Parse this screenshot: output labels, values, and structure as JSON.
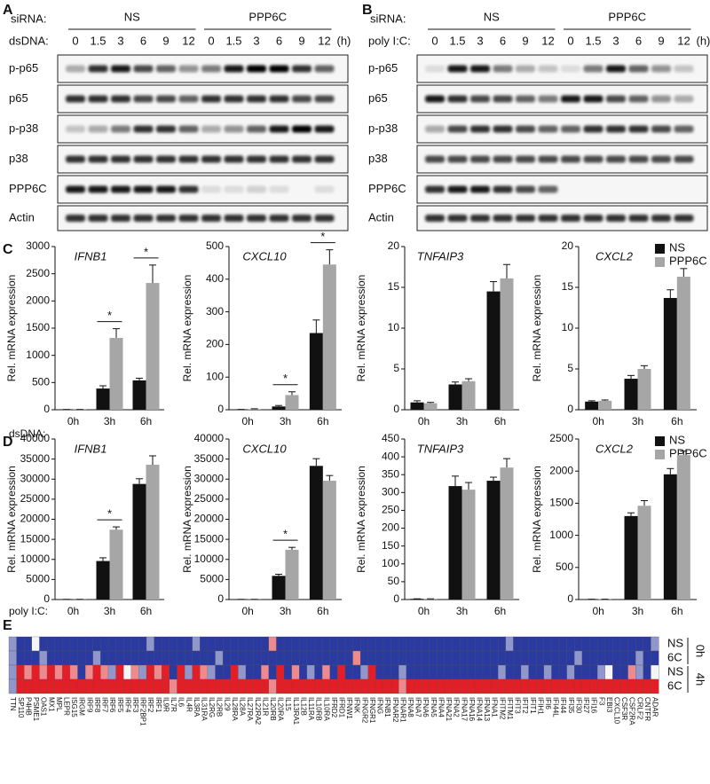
{
  "blots": [
    {
      "letter": "A",
      "sirna_label": "siRNA:",
      "groups": [
        "NS",
        "PPP6C"
      ],
      "treatment": "dsDNA:",
      "times": [
        "0",
        "1.5",
        "3",
        "6",
        "9",
        "12"
      ],
      "unit": "(h)",
      "rows": [
        {
          "label": "p-p65",
          "bands": [
            0.3,
            0.8,
            0.9,
            0.7,
            0.6,
            0.4,
            0.5,
            0.9,
            1,
            1,
            0.8,
            0.6
          ]
        },
        {
          "label": "p65",
          "bands": [
            0.8,
            0.8,
            0.8,
            0.7,
            0.7,
            0.6,
            0.8,
            0.8,
            0.8,
            0.8,
            0.7,
            0.7
          ]
        },
        {
          "label": "p-p38",
          "bands": [
            0.2,
            0.3,
            0.5,
            0.8,
            0.8,
            0.6,
            0.3,
            0.4,
            0.6,
            0.9,
            1,
            0.9
          ]
        },
        {
          "label": "p38",
          "bands": [
            0.8,
            0.8,
            0.8,
            0.8,
            0.8,
            0.8,
            0.8,
            0.8,
            0.8,
            0.8,
            0.8,
            0.8
          ]
        },
        {
          "label": "PPP6C",
          "bands": [
            0.9,
            0.9,
            0.9,
            0.9,
            0.9,
            0.8,
            0.1,
            0.1,
            0.15,
            0.1,
            0,
            0.1
          ]
        },
        {
          "label": "Actin",
          "bands": [
            0.8,
            0.8,
            0.8,
            0.8,
            0.8,
            0.8,
            0.8,
            0.8,
            0.8,
            0.8,
            0.8,
            0.8
          ]
        }
      ]
    },
    {
      "letter": "B",
      "sirna_label": "siRNA:",
      "groups": [
        "NS",
        "PPP6C"
      ],
      "treatment": "poly I:C:",
      "times": [
        "0",
        "1.5",
        "3",
        "6",
        "9",
        "12"
      ],
      "unit": "(h)",
      "rows": [
        {
          "label": "p-p65",
          "bands": [
            0.1,
            0.9,
            0.9,
            0.5,
            0.3,
            0.2,
            0.1,
            0.5,
            0.9,
            0.6,
            0.4,
            0.2
          ]
        },
        {
          "label": "p65",
          "bands": [
            0.9,
            0.8,
            0.7,
            0.7,
            0.6,
            0.5,
            0.9,
            0.9,
            0.7,
            0.6,
            0.4,
            0.3
          ]
        },
        {
          "label": "p-p38",
          "bands": [
            0.3,
            0.7,
            0.8,
            0.8,
            0.7,
            0.6,
            0.6,
            0.8,
            0.8,
            0.8,
            0.7,
            0.6
          ]
        },
        {
          "label": "p38",
          "bands": [
            0.7,
            0.7,
            0.7,
            0.7,
            0.7,
            0.7,
            0.7,
            0.7,
            0.7,
            0.7,
            0.7,
            0.7
          ]
        },
        {
          "label": "PPP6C",
          "bands": [
            0.8,
            0.9,
            0.9,
            0.8,
            0.7,
            0.6,
            0,
            0,
            0,
            0,
            0,
            0
          ]
        },
        {
          "label": "Actin",
          "bands": [
            0.8,
            0.8,
            0.8,
            0.8,
            0.8,
            0.8,
            0.8,
            0.8,
            0.8,
            0.8,
            0.8,
            0.8
          ]
        }
      ]
    }
  ],
  "bar_rows": [
    {
      "letter": "C",
      "treatment": "dsDNA:",
      "ylabel": "Rel. mRNA expression",
      "charts": [
        {
          "type": "bar",
          "gene": "IFNB1",
          "categories": [
            "0h",
            "3h",
            "6h"
          ],
          "ylim": [
            0,
            3000
          ],
          "yticks": [
            0,
            500,
            1000,
            1500,
            2000,
            2500,
            3000
          ],
          "stars": [
            null,
            "*",
            "*"
          ],
          "series": [
            {
              "name": "NS",
              "color": "#111111",
              "values": [
                5,
                390,
                540
              ],
              "errors": [
                0,
                50,
                40
              ]
            },
            {
              "name": "PPP6C",
              "color": "#a6a6a6",
              "values": [
                5,
                1320,
                2330
              ],
              "errors": [
                0,
                170,
                330
              ]
            }
          ]
        },
        {
          "type": "bar",
          "gene": "CXCL10",
          "categories": [
            "0h",
            "3h",
            "6h"
          ],
          "ylim": [
            0,
            500
          ],
          "yticks": [
            0,
            100,
            200,
            300,
            400,
            500
          ],
          "stars": [
            null,
            "*",
            "*"
          ],
          "series": [
            {
              "name": "NS",
              "color": "#111111",
              "values": [
                1,
                10,
                235
              ],
              "errors": [
                0,
                3,
                40
              ]
            },
            {
              "name": "PPP6C",
              "color": "#a6a6a6",
              "values": [
                2,
                45,
                445
              ],
              "errors": [
                1,
                10,
                45
              ]
            }
          ]
        },
        {
          "type": "bar",
          "gene": "TNFAIP3",
          "categories": [
            "0h",
            "3h",
            "6h"
          ],
          "ylim": [
            0,
            20
          ],
          "yticks": [
            0,
            5,
            10,
            15,
            20
          ],
          "stars": [
            null,
            null,
            null
          ],
          "series": [
            {
              "name": "NS",
              "color": "#111111",
              "values": [
                0.9,
                3.1,
                14.5
              ],
              "errors": [
                0.2,
                0.3,
                1.2
              ]
            },
            {
              "name": "PPP6C",
              "color": "#a6a6a6",
              "values": [
                0.8,
                3.5,
                16.1
              ],
              "errors": [
                0.1,
                0.3,
                1.7
              ]
            }
          ]
        },
        {
          "type": "bar",
          "gene": "CXCL2",
          "categories": [
            "0h",
            "3h",
            "6h"
          ],
          "ylim": [
            0,
            20
          ],
          "yticks": [
            0,
            5,
            10,
            15,
            20
          ],
          "stars": [
            null,
            null,
            null
          ],
          "series": [
            {
              "name": "NS",
              "color": "#111111",
              "values": [
                1,
                3.8,
                13.7
              ],
              "errors": [
                0.1,
                0.4,
                1
              ]
            },
            {
              "name": "PPP6C",
              "color": "#a6a6a6",
              "values": [
                1.1,
                5,
                16.3
              ],
              "errors": [
                0.1,
                0.4,
                1
              ]
            }
          ]
        }
      ]
    },
    {
      "letter": "D",
      "treatment": "poly I:C:",
      "ylabel": "Rel. mRNA expression",
      "charts": [
        {
          "type": "bar",
          "gene": "IFNB1",
          "categories": [
            "0h",
            "3h",
            "6h"
          ],
          "ylim": [
            0,
            40000
          ],
          "yticks": [
            0,
            5000,
            10000,
            15000,
            20000,
            25000,
            30000,
            35000,
            40000
          ],
          "stars": [
            null,
            "*",
            null
          ],
          "series": [
            {
              "name": "NS",
              "color": "#111111",
              "values": [
                50,
                9600,
                28800
              ],
              "errors": [
                0,
                800,
                1300
              ]
            },
            {
              "name": "PPP6C",
              "color": "#a6a6a6",
              "values": [
                50,
                17400,
                33600
              ],
              "errors": [
                0,
                700,
                2200
              ]
            }
          ]
        },
        {
          "type": "bar",
          "gene": "CXCL10",
          "categories": [
            "0h",
            "3h",
            "6h"
          ],
          "ylim": [
            0,
            40000
          ],
          "yticks": [
            0,
            5000,
            10000,
            15000,
            20000,
            25000,
            30000,
            35000,
            40000
          ],
          "stars": [
            null,
            "*",
            null
          ],
          "series": [
            {
              "name": "NS",
              "color": "#111111",
              "values": [
                50,
                5900,
                33300
              ],
              "errors": [
                0,
                400,
                1800
              ]
            },
            {
              "name": "PPP6C",
              "color": "#a6a6a6",
              "values": [
                50,
                12400,
                29600
              ],
              "errors": [
                0,
                600,
                1300
              ]
            }
          ]
        },
        {
          "type": "bar",
          "gene": "TNFAIP3",
          "categories": [
            "0h",
            "3h",
            "6h"
          ],
          "ylim": [
            0,
            450
          ],
          "yticks": [
            0,
            50,
            100,
            150,
            200,
            250,
            300,
            350,
            400,
            450
          ],
          "stars": [
            null,
            null,
            null
          ],
          "series": [
            {
              "name": "NS",
              "color": "#111111",
              "values": [
                2,
                318,
                333
              ],
              "errors": [
                0,
                28,
                10
              ]
            },
            {
              "name": "PPP6C",
              "color": "#a6a6a6",
              "values": [
                2,
                308,
                370
              ],
              "errors": [
                0,
                20,
                25
              ]
            }
          ]
        },
        {
          "type": "bar",
          "gene": "CXCL2",
          "categories": [
            "0h",
            "3h",
            "6h"
          ],
          "ylim": [
            0,
            2500
          ],
          "yticks": [
            0,
            500,
            1000,
            1500,
            2000,
            2500
          ],
          "stars": [
            null,
            null,
            null
          ],
          "series": [
            {
              "name": "NS",
              "color": "#111111",
              "values": [
                5,
                1300,
                1950
              ],
              "errors": [
                0,
                50,
                90
              ]
            },
            {
              "name": "PPP6C",
              "color": "#a6a6a6",
              "values": [
                5,
                1460,
                2250
              ],
              "errors": [
                0,
                80,
                60
              ]
            }
          ]
        }
      ]
    }
  ],
  "heatmap": {
    "letter": "E",
    "genes": [
      "TTN",
      "SP110",
      "P4HB",
      "PSME1",
      "OAS1",
      "MX1",
      "MPL",
      "LEPR",
      "ISG15",
      "IRGM",
      "IRF9",
      "IRF8",
      "IRF7",
      "IRF6",
      "IRF5",
      "IRF4",
      "IRF3",
      "IRF2BP1",
      "IRF2",
      "IRF1",
      "IL9R",
      "IL7R",
      "IL6",
      "IL4R",
      "IL3RA",
      "IL31RA",
      "IL2RG",
      "IL2RB",
      "IL29",
      "IL28RA",
      "IL28A",
      "IL27RA",
      "IL22RA2",
      "IL21R",
      "IL20RB",
      "IL20RA",
      "IL15",
      "IL13RA1",
      "IL12B",
      "IL11RA",
      "IL10RB",
      "IL10RA",
      "IFRD2",
      "IFRD1",
      "IFNW1",
      "IFNK",
      "IFNGR2",
      "IFNGR1",
      "IFNG",
      "IFNB1",
      "IFNAR2",
      "IFNAR1",
      "IFNA8",
      "IFNA7",
      "IFNA6",
      "IFNA5",
      "IFNA4",
      "IFNA21",
      "IFNA2",
      "IFNA17",
      "IFNA16",
      "IFNA14",
      "IFNA13",
      "IFNA1",
      "IFITM2",
      "IFITM1",
      "IFIT3",
      "IFIT2",
      "IFIT1",
      "IFIH1",
      "IFI6",
      "IFI44L",
      "IFI44",
      "IFI35",
      "IFI30",
      "IFI27",
      "IFI16",
      "F3",
      "EBI3",
      "CXCL10",
      "CSF3R",
      "CSF2RA",
      "CRLF2",
      "CNTFR",
      "ADAR"
    ],
    "rows": [
      {
        "label": "NS",
        "values": [
          -1,
          -2,
          -2,
          0,
          -2,
          -2,
          -2,
          -2,
          -2,
          -2,
          -2,
          -2,
          -2,
          -2,
          -2,
          -2,
          -2,
          -2,
          -1,
          -2,
          -2,
          -2,
          -2,
          -2,
          -1,
          -2,
          -2,
          -2,
          -2,
          -2,
          -2,
          -2,
          -2,
          -2,
          1,
          -2,
          -2,
          -2,
          -2,
          -2,
          -2,
          -2,
          -2,
          -2,
          -2,
          -2,
          -2,
          -2,
          -2,
          -2,
          -2,
          -2,
          -2,
          -2,
          -2,
          -2,
          -2,
          -2,
          -2,
          -2,
          -2,
          -2,
          -2,
          -2,
          -2,
          -1,
          -2,
          -2,
          -2,
          -2,
          -2,
          -2,
          -2,
          -2,
          -2,
          -2,
          -2,
          -2,
          -2,
          -2,
          -2,
          -2,
          -2,
          -2,
          -1
        ]
      },
      {
        "label": "6C",
        "values": [
          -1,
          -2,
          -2,
          -2,
          -1,
          -2,
          -2,
          -2,
          -2,
          -2,
          -2,
          -1,
          -2,
          -2,
          -2,
          -2,
          -2,
          -2,
          -2,
          -2,
          -2,
          -2,
          -2,
          -2,
          -2,
          -2,
          -2,
          -1,
          -2,
          -2,
          -2,
          -2,
          -2,
          -2,
          -2,
          -2,
          -2,
          -2,
          -2,
          -2,
          -2,
          -2,
          -2,
          -2,
          -2,
          1,
          -2,
          -2,
          -2,
          -2,
          -2,
          -2,
          -2,
          -2,
          -2,
          -2,
          -2,
          -2,
          -2,
          -2,
          -2,
          -2,
          -2,
          -2,
          -2,
          -2,
          -2,
          -2,
          -2,
          -2,
          -2,
          -2,
          -2,
          -2,
          -1,
          -2,
          -2,
          -2,
          -2,
          -2,
          -2,
          -2,
          -1,
          -2,
          -2
        ]
      },
      {
        "label": "NS",
        "values": [
          -1,
          2,
          1,
          2,
          1,
          2,
          1,
          2,
          1,
          -2,
          1,
          2,
          1,
          -1,
          2,
          0,
          1,
          -1,
          2,
          1,
          2,
          -2,
          2,
          -1,
          2,
          1,
          -1,
          -2,
          -2,
          2,
          -1,
          -2,
          -2,
          1,
          -2,
          2,
          -2,
          1,
          -2,
          -1,
          -2,
          1,
          -2,
          2,
          -2,
          -2,
          -1,
          2,
          -2,
          -2,
          -2,
          -1,
          -2,
          -2,
          -2,
          -2,
          -2,
          -2,
          -2,
          -2,
          -2,
          -2,
          -2,
          -2,
          -1,
          -2,
          -2,
          -1,
          -2,
          -2,
          -1,
          -2,
          -2,
          -1,
          -2,
          -2,
          -2,
          -1,
          0,
          -2,
          -2,
          1,
          -1,
          -2,
          0
        ]
      },
      {
        "label": "6C",
        "values": [
          -1,
          2,
          2,
          2,
          2,
          2,
          2,
          2,
          2,
          2,
          2,
          2,
          2,
          2,
          2,
          2,
          2,
          2,
          2,
          2,
          2,
          1,
          2,
          2,
          2,
          2,
          2,
          2,
          2,
          2,
          2,
          2,
          2,
          2,
          1,
          2,
          2,
          2,
          2,
          2,
          2,
          2,
          2,
          2,
          2,
          2,
          2,
          2,
          2,
          2,
          2,
          1,
          2,
          2,
          2,
          2,
          2,
          2,
          2,
          2,
          2,
          2,
          2,
          2,
          2,
          2,
          2,
          2,
          2,
          2,
          2,
          2,
          2,
          2,
          2,
          2,
          2,
          2,
          2,
          2,
          2,
          2,
          2,
          2,
          2
        ]
      }
    ],
    "groups": [
      "0h",
      "4h"
    ]
  }
}
